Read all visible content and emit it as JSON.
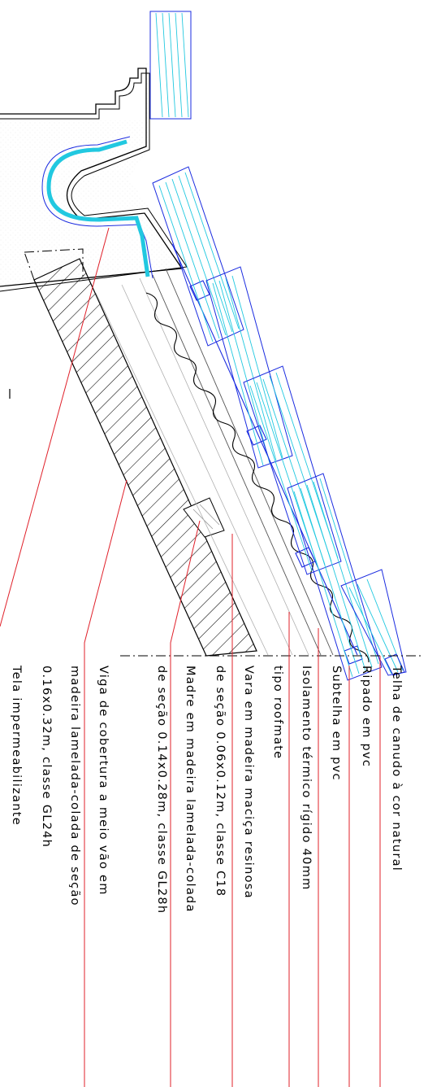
{
  "drawing": {
    "colors": {
      "line": "#000000",
      "leader": "#e0202a",
      "tile_outline": "#1a2be0",
      "tile_fill_lines": "#21c8e0",
      "hatch": "#000000",
      "light_line": "#9a9a9a"
    },
    "labels": [
      {
        "id": "telha",
        "lines": [
          "Telha de canudo à cor natural"
        ]
      },
      {
        "id": "ripado",
        "lines": [
          "Ripado em pvc"
        ]
      },
      {
        "id": "subtelha",
        "lines": [
          "Subtelha em pvc"
        ]
      },
      {
        "id": "isolamento",
        "lines": [
          "Isolamento térmico rígido 40mm",
          "tipo roofmate"
        ]
      },
      {
        "id": "vara",
        "lines": [
          "Vara em madeira maciça resinosa",
          "de seção 0.06x0.12m, classe C18"
        ]
      },
      {
        "id": "madre",
        "lines": [
          "Madre em madeira lamelada-colada",
          "de seção 0.14x0.28m, classe GL28h"
        ]
      },
      {
        "id": "viga",
        "lines": [
          "Viga de cobertura a meio vão em",
          "madeira lamelada-colada de seção",
          "0.16x0.32m, classe GL24h"
        ]
      },
      {
        "id": "tela",
        "lines": [
          "Tela impermeabilizante"
        ]
      }
    ]
  }
}
